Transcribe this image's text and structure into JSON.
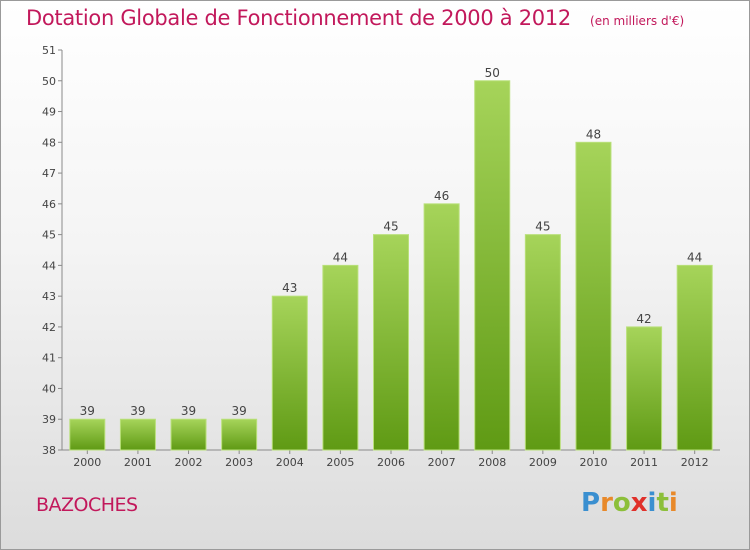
{
  "chart_data": {
    "type": "bar",
    "title": "Dotation Globale de Fonctionnement de 2000 à 2012",
    "unit_note": "(en milliers d'€)",
    "categories": [
      "2000",
      "2001",
      "2002",
      "2003",
      "2004",
      "2005",
      "2006",
      "2007",
      "2008",
      "2009",
      "2010",
      "2011",
      "2012"
    ],
    "values": [
      39,
      39,
      39,
      39,
      43,
      44,
      45,
      46,
      50,
      45,
      48,
      42,
      44
    ],
    "ylim": [
      38,
      51
    ],
    "yticks": [
      38,
      39,
      40,
      41,
      42,
      43,
      44,
      45,
      46,
      47,
      48,
      49,
      50,
      51
    ],
    "grid": false,
    "data_labels": true,
    "colors": {
      "bar_top": "#a6d45a",
      "bar_bottom": "#5f9a14",
      "title": "#c2185b"
    }
  },
  "commune": "BAZOCHES",
  "brand": {
    "letters": [
      "P",
      "r",
      "o",
      "x",
      "i",
      "t",
      "i"
    ],
    "colors": [
      "#3a8fd0",
      "#e8892a",
      "#8cbf3a",
      "#e0302a",
      "#3a8fd0",
      "#8cbf3a",
      "#e8892a"
    ]
  }
}
